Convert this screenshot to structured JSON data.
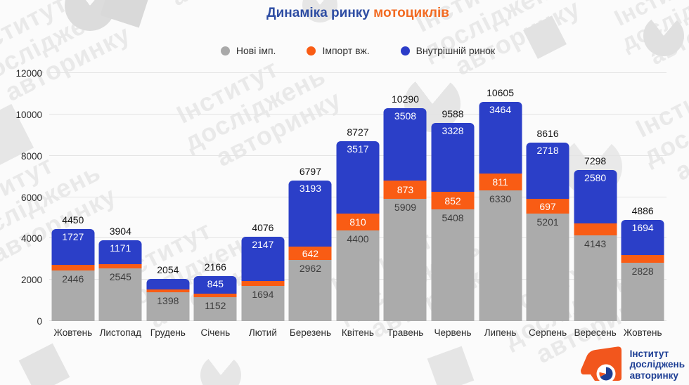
{
  "title": {
    "part1": "Динаміка ринку",
    "part2": "мотоциклів"
  },
  "legend": [
    {
      "label": "Нові імп.",
      "color": "#a9a9a9"
    },
    {
      "label": "Імпорт вж.",
      "color": "#f95c14"
    },
    {
      "label": "Внутрішній ринок",
      "color": "#2b3cc8"
    }
  ],
  "watermark": {
    "lines": [
      "Інститут",
      "досліджень",
      "авторинку"
    ]
  },
  "logo": {
    "lines": [
      "Інститут",
      "досліджень",
      "авторинку"
    ]
  },
  "colors": {
    "background": "#fbfbfb",
    "gray_series": "#ababab",
    "orange_series": "#f95c14",
    "blue_series": "#2b3fc8",
    "title_blue": "#2e4da3",
    "title_orange": "#f26a21",
    "logo_orange": "#f2561d",
    "logo_navy": "#1d3e94"
  },
  "chart_data": {
    "type": "bar",
    "stacked": true,
    "title": "Динаміка ринку мотоциклів",
    "xlabel": "",
    "ylabel": "",
    "ylim": [
      0,
      12000
    ],
    "yticks": [
      0,
      2000,
      4000,
      6000,
      8000,
      10000,
      12000
    ],
    "grid": true,
    "legend_position": "top",
    "categories": [
      "Жовтень",
      "Листопад",
      "Грудень",
      "Січень",
      "Лютий",
      "Березень",
      "Квітень",
      "Травень",
      "Червень",
      "Липень",
      "Серпень",
      "Вересень",
      "Жовтень"
    ],
    "series": [
      {
        "name": "Нові імп.",
        "color": "#ababab",
        "values": [
          2446,
          2545,
          1398,
          1152,
          1694,
          2962,
          4400,
          5909,
          5408,
          6330,
          5201,
          4143,
          2828
        ],
        "labels": [
          "2446",
          "2545",
          "1398",
          "1152",
          "1694",
          "2962",
          "4400",
          "5909",
          "5408",
          "6330",
          "5201",
          "4143",
          "2828"
        ]
      },
      {
        "name": "Імпорт вж.",
        "color": "#f95c14",
        "values": [
          277,
          188,
          150,
          169,
          235,
          642,
          810,
          873,
          852,
          811,
          697,
          575,
          364
        ],
        "labels": [
          "",
          "",
          "",
          "",
          "",
          "642",
          "810",
          "873",
          "852",
          "811",
          "697",
          "",
          ""
        ]
      },
      {
        "name": "Внутрішній ринок",
        "color": "#2b3fc8",
        "values": [
          1727,
          1171,
          506,
          845,
          2147,
          3193,
          3517,
          3508,
          3328,
          3464,
          2718,
          2580,
          1694
        ],
        "labels": [
          "1727",
          "1171",
          "",
          "845",
          "2147",
          "3193",
          "3517",
          "3508",
          "3328",
          "3464",
          "2718",
          "2580",
          "1694"
        ]
      }
    ],
    "totals": [
      4450,
      3904,
      2054,
      2166,
      4076,
      6797,
      8727,
      10290,
      9588,
      10605,
      8616,
      7298,
      4886
    ],
    "total_labels": [
      "4450",
      "3904",
      "2054",
      "2166",
      "4076",
      "6797",
      "8727",
      "10290",
      "9588",
      "10605",
      "8616",
      "7298",
      "4886"
    ]
  }
}
